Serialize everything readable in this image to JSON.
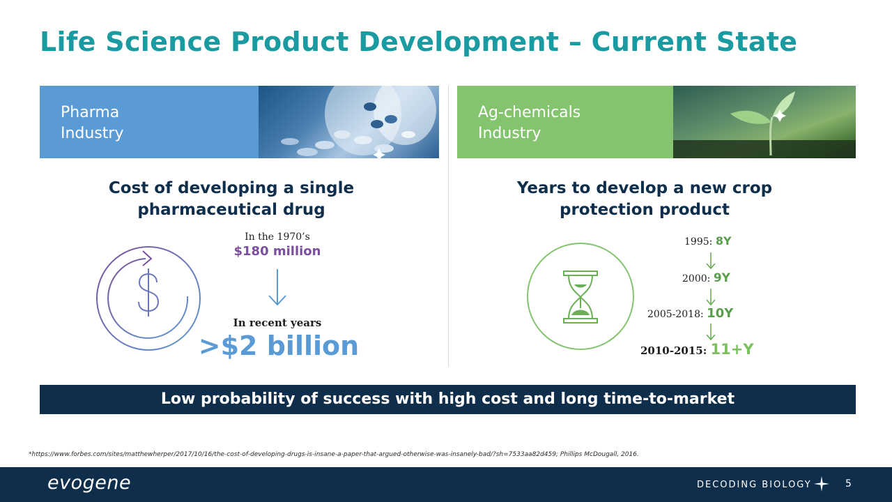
{
  "title": "Life Science Product Development – Current State",
  "pharma": {
    "banner_label": "Pharma\nIndustry",
    "heading": "Cost of developing a single\npharmaceutical drug",
    "era_label": "In the 1970’s",
    "era_value": "$180 million",
    "recent_label": "In recent years",
    "recent_value": ">$2 billion",
    "icon": "dollar-cycle-icon"
  },
  "ag": {
    "banner_label": "Ag-chemicals\nIndustry",
    "heading": "Years to develop a new crop\nprotection product",
    "icon": "hourglass-icon",
    "timeline": [
      {
        "period": "1995:",
        "years": "8Y"
      },
      {
        "period": "2000:",
        "years": "9Y"
      },
      {
        "period": "2005-2018:",
        "years": "10Y"
      },
      {
        "period": "2010-2015:",
        "years": "11+Y"
      }
    ]
  },
  "conclusion": "Low probability of success with high cost and long time-to-market",
  "footnote": "*https://www.forbes.com/sites/matthewherper/2017/10/16/the-cost-of-developing-drugs-is-insane-a-paper-that-argued-otherwise-was-insanely-bad/?sh=7533aa82d459; Phillips McDougall, 2016.",
  "footer": {
    "logo": "evogene",
    "tagline": "DECODING BIOLOGY",
    "page_number": "5"
  },
  "colors": {
    "title": "#1a9ba1",
    "pharma_blue": "#5b9bd5",
    "ag_green": "#85c46f",
    "navy": "#0f2e4b",
    "purple": "#7b4f9d"
  }
}
